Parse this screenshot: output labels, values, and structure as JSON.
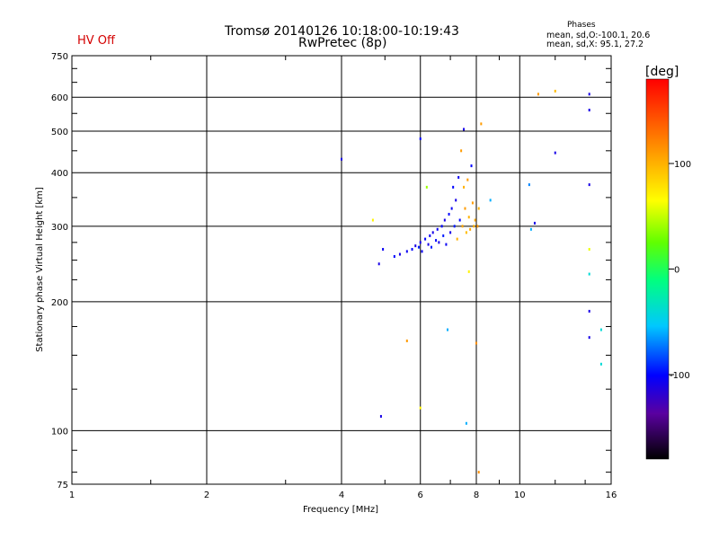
{
  "header": {
    "title_line1": "Tromsø 20140126 10:18:00-10:19:43",
    "title_line2": "RwPretec (8p)",
    "status": "HV Off",
    "phases_title": "Phases",
    "phases_o": "mean, sd,O:-100.1, 20.6",
    "phases_x": "mean, sd,X:  95.1, 27.2"
  },
  "colors": {
    "status": "#d40000",
    "grid": "#000000"
  },
  "chart_data": {
    "type": "scatter",
    "title": "Tromsø 20140126 10:18:00-10:19:43",
    "subtitle": "RwPretec (8p)",
    "xlabel": "Frequency [MHz]",
    "ylabel": "Stationary phase Virtual Height [km]",
    "x_scale": "log",
    "y_scale": "log",
    "xlim": [
      1,
      16
    ],
    "ylim": [
      75,
      750
    ],
    "grid": true,
    "x_ticks": [
      1,
      2,
      4,
      6,
      8,
      10,
      16
    ],
    "y_ticks": [
      75,
      100,
      200,
      300,
      400,
      500,
      600,
      750
    ],
    "colorbar": {
      "label": "[deg]",
      "range": [
        -180,
        180
      ],
      "ticks": [
        -100,
        0,
        100
      ]
    },
    "points": [
      {
        "x": 4.0,
        "y": 430,
        "phase": -110
      },
      {
        "x": 4.7,
        "y": 310,
        "phase": 70
      },
      {
        "x": 4.85,
        "y": 245,
        "phase": -110
      },
      {
        "x": 4.95,
        "y": 265,
        "phase": -105
      },
      {
        "x": 4.9,
        "y": 108,
        "phase": -110
      },
      {
        "x": 5.25,
        "y": 255,
        "phase": -100
      },
      {
        "x": 5.4,
        "y": 258,
        "phase": -110
      },
      {
        "x": 5.6,
        "y": 262,
        "phase": -105
      },
      {
        "x": 5.6,
        "y": 162,
        "phase": 110
      },
      {
        "x": 5.75,
        "y": 265,
        "phase": -100
      },
      {
        "x": 5.85,
        "y": 270,
        "phase": -110
      },
      {
        "x": 5.95,
        "y": 268,
        "phase": -95
      },
      {
        "x": 6.0,
        "y": 480,
        "phase": -100
      },
      {
        "x": 6.0,
        "y": 275,
        "phase": -110
      },
      {
        "x": 6.05,
        "y": 262,
        "phase": -105
      },
      {
        "x": 6.0,
        "y": 113,
        "phase": 70
      },
      {
        "x": 6.15,
        "y": 280,
        "phase": -100
      },
      {
        "x": 6.2,
        "y": 370,
        "phase": 40
      },
      {
        "x": 6.25,
        "y": 272,
        "phase": -110
      },
      {
        "x": 6.3,
        "y": 285,
        "phase": -105
      },
      {
        "x": 6.35,
        "y": 268,
        "phase": -95
      },
      {
        "x": 6.4,
        "y": 290,
        "phase": -110
      },
      {
        "x": 6.5,
        "y": 278,
        "phase": -100
      },
      {
        "x": 6.55,
        "y": 295,
        "phase": -105
      },
      {
        "x": 6.6,
        "y": 275,
        "phase": -110
      },
      {
        "x": 6.7,
        "y": 300,
        "phase": -100
      },
      {
        "x": 6.75,
        "y": 285,
        "phase": -95
      },
      {
        "x": 6.8,
        "y": 310,
        "phase": -110
      },
      {
        "x": 6.85,
        "y": 272,
        "phase": -105
      },
      {
        "x": 6.9,
        "y": 172,
        "phase": -60
      },
      {
        "x": 6.95,
        "y": 320,
        "phase": -100
      },
      {
        "x": 7.0,
        "y": 290,
        "phase": -110
      },
      {
        "x": 7.05,
        "y": 330,
        "phase": -105
      },
      {
        "x": 7.1,
        "y": 370,
        "phase": -100
      },
      {
        "x": 7.15,
        "y": 300,
        "phase": -95
      },
      {
        "x": 7.2,
        "y": 345,
        "phase": -110
      },
      {
        "x": 7.25,
        "y": 280,
        "phase": 100
      },
      {
        "x": 7.3,
        "y": 390,
        "phase": -105
      },
      {
        "x": 7.35,
        "y": 310,
        "phase": -100
      },
      {
        "x": 7.4,
        "y": 450,
        "phase": 110
      },
      {
        "x": 7.45,
        "y": 300,
        "phase": 105
      },
      {
        "x": 7.5,
        "y": 505,
        "phase": -110
      },
      {
        "x": 7.5,
        "y": 370,
        "phase": 100
      },
      {
        "x": 7.55,
        "y": 330,
        "phase": 110
      },
      {
        "x": 7.6,
        "y": 290,
        "phase": 95
      },
      {
        "x": 7.6,
        "y": 104,
        "phase": -60
      },
      {
        "x": 7.65,
        "y": 385,
        "phase": 110
      },
      {
        "x": 7.7,
        "y": 315,
        "phase": 100
      },
      {
        "x": 7.7,
        "y": 235,
        "phase": 70
      },
      {
        "x": 7.75,
        "y": 295,
        "phase": 105
      },
      {
        "x": 7.8,
        "y": 415,
        "phase": -100
      },
      {
        "x": 7.85,
        "y": 340,
        "phase": 110
      },
      {
        "x": 7.9,
        "y": 300,
        "phase": 100
      },
      {
        "x": 7.95,
        "y": 310,
        "phase": 105
      },
      {
        "x": 8.0,
        "y": 160,
        "phase": 115
      },
      {
        "x": 8.05,
        "y": 300,
        "phase": 110
      },
      {
        "x": 8.1,
        "y": 330,
        "phase": 100
      },
      {
        "x": 8.2,
        "y": 520,
        "phase": 110
      },
      {
        "x": 8.1,
        "y": 80,
        "phase": 115
      },
      {
        "x": 8.6,
        "y": 345,
        "phase": -60
      },
      {
        "x": 10.5,
        "y": 375,
        "phase": -70
      },
      {
        "x": 10.6,
        "y": 295,
        "phase": -60
      },
      {
        "x": 10.8,
        "y": 305,
        "phase": -110
      },
      {
        "x": 11.0,
        "y": 610,
        "phase": 110
      },
      {
        "x": 12.0,
        "y": 620,
        "phase": 95
      },
      {
        "x": 12.0,
        "y": 445,
        "phase": -110
      },
      {
        "x": 14.3,
        "y": 610,
        "phase": -110
      },
      {
        "x": 14.3,
        "y": 560,
        "phase": -110
      },
      {
        "x": 14.3,
        "y": 375,
        "phase": -110
      },
      {
        "x": 14.3,
        "y": 265,
        "phase": 60
      },
      {
        "x": 14.3,
        "y": 232,
        "phase": -40
      },
      {
        "x": 14.3,
        "y": 190,
        "phase": -110
      },
      {
        "x": 14.3,
        "y": 165,
        "phase": -110
      },
      {
        "x": 15.2,
        "y": 172,
        "phase": -40
      },
      {
        "x": 15.2,
        "y": 143,
        "phase": -40
      }
    ]
  }
}
